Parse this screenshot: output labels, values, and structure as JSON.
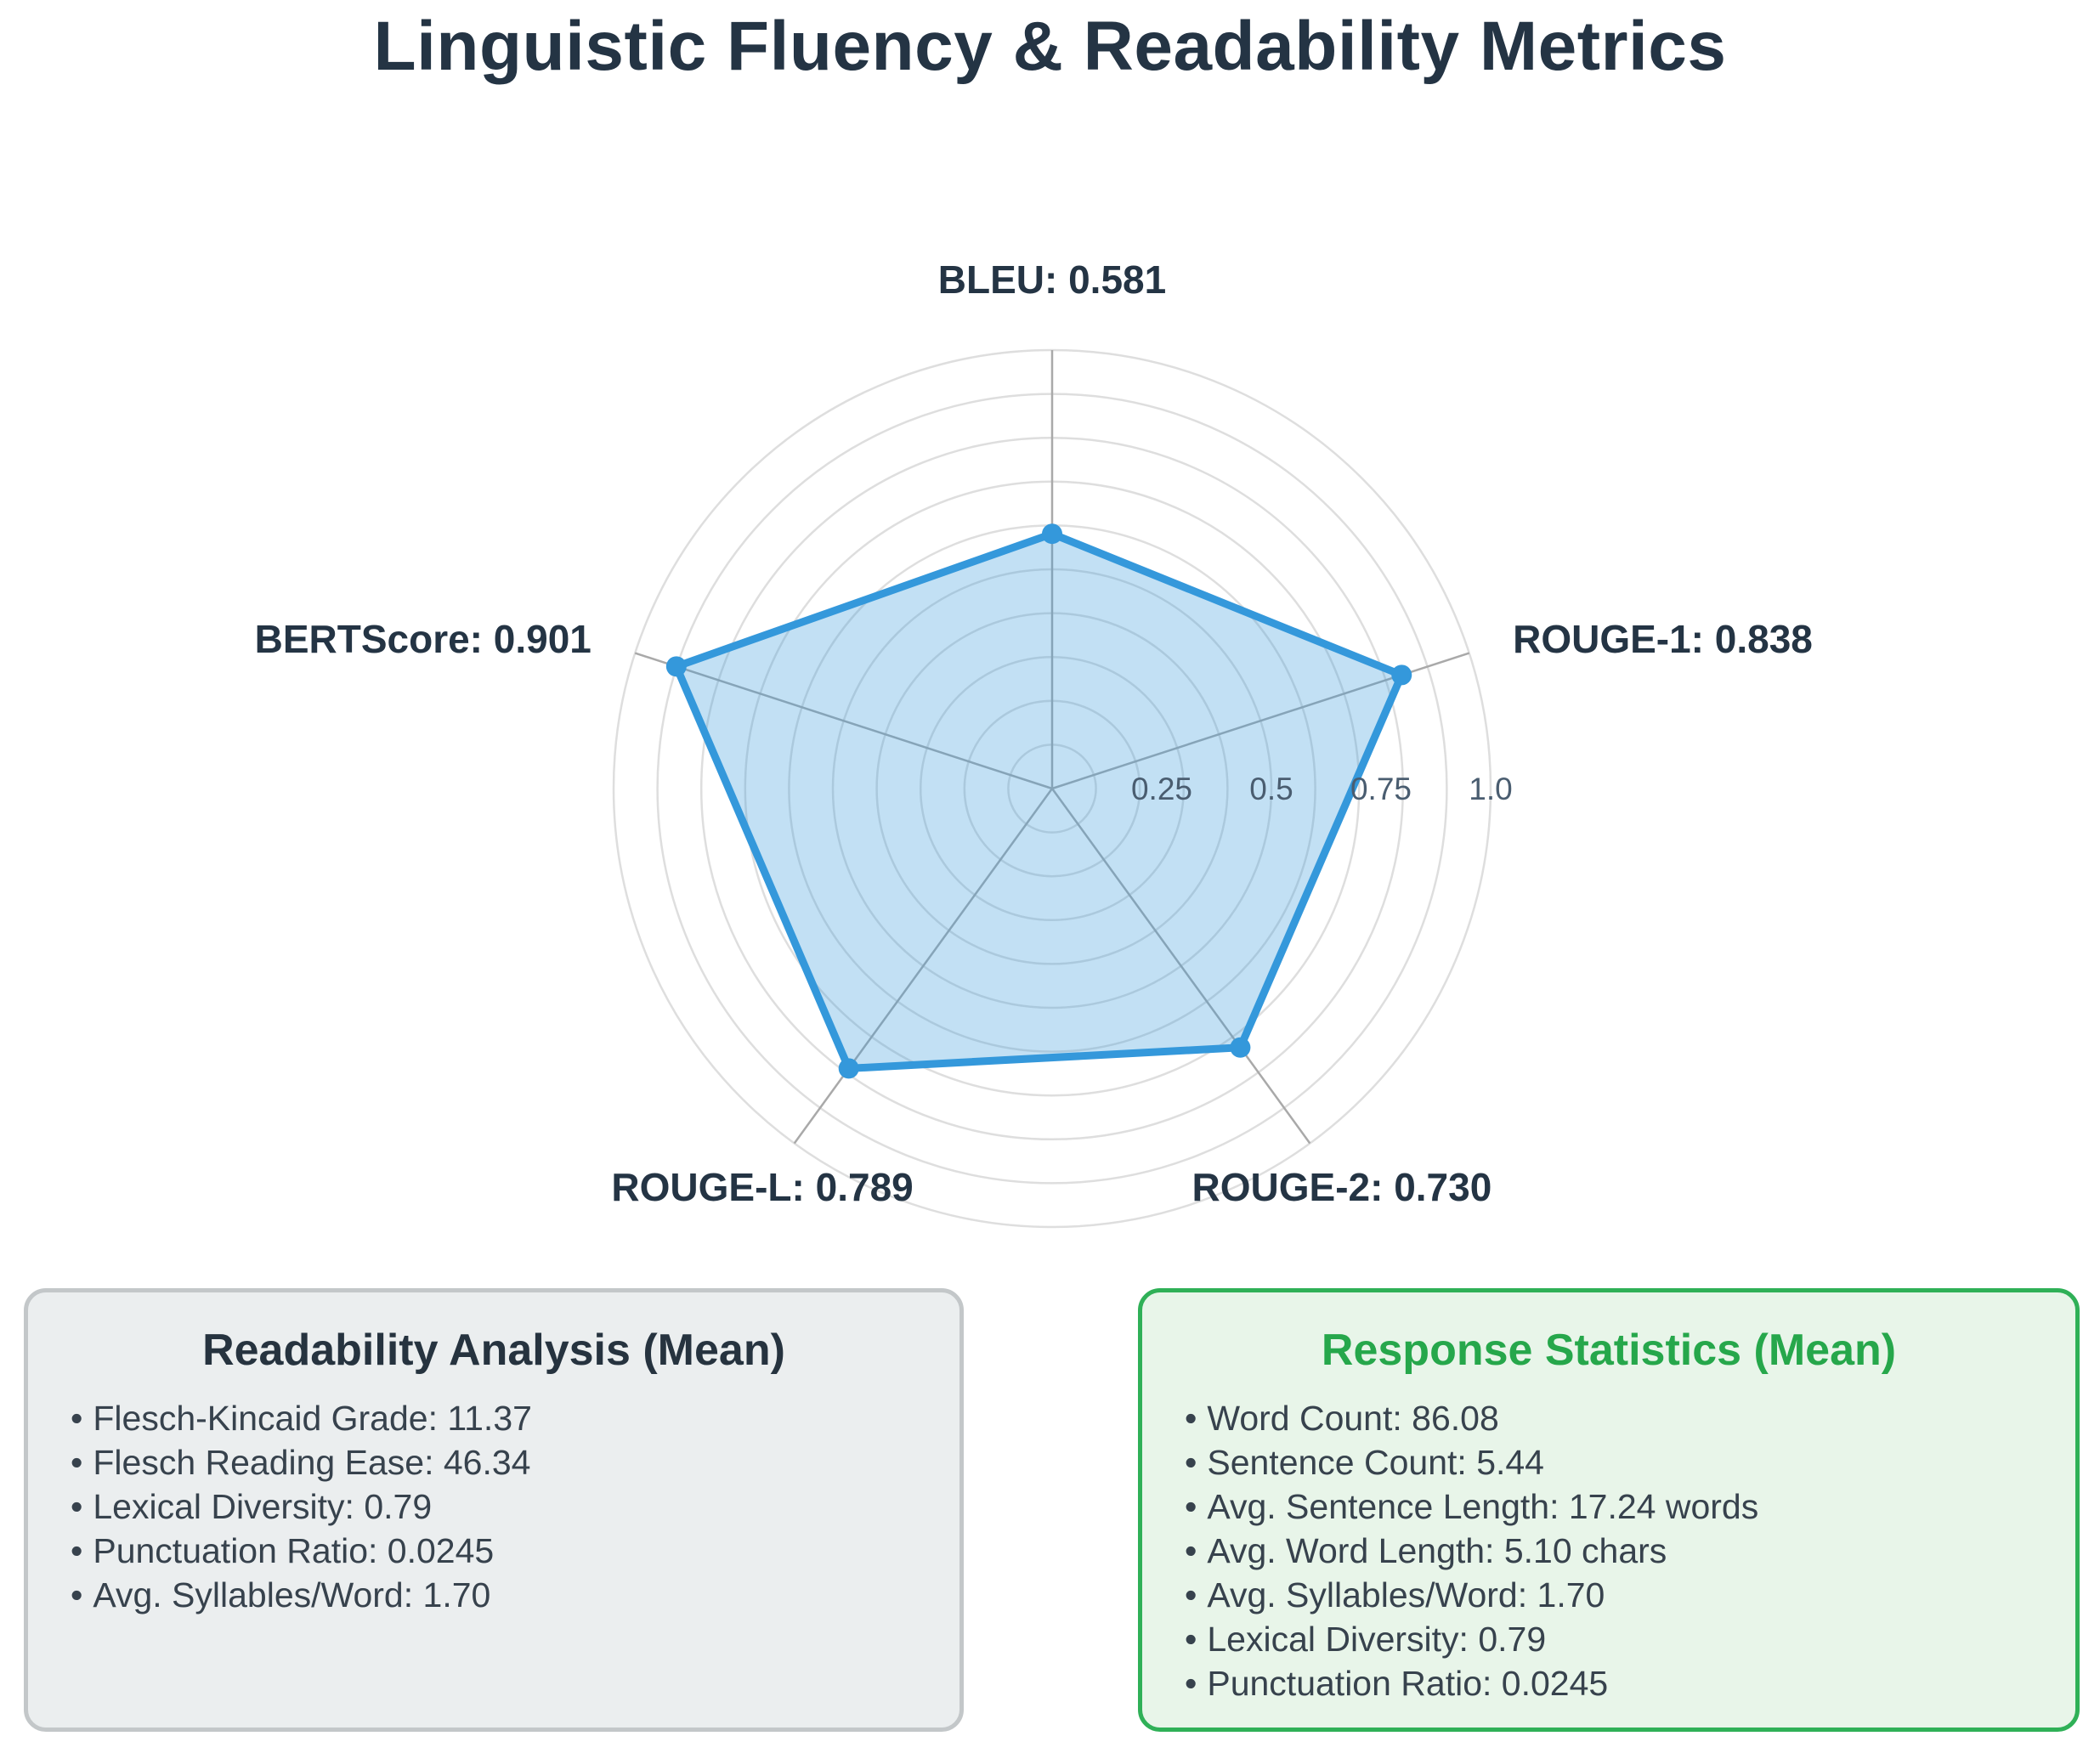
{
  "title": "Linguistic Fluency & Readability Metrics",
  "chart_data": {
    "type": "radar",
    "axes": [
      {
        "name": "BLEU",
        "value": 0.581,
        "label": "BLEU: 0.581"
      },
      {
        "name": "ROUGE-1",
        "value": 0.838,
        "label": "ROUGE-1: 0.838"
      },
      {
        "name": "ROUGE-2",
        "value": 0.73,
        "label": "ROUGE-2: 0.730"
      },
      {
        "name": "ROUGE-L",
        "value": 0.789,
        "label": "ROUGE-L: 0.789"
      },
      {
        "name": "BERTScore",
        "value": 0.901,
        "label": "BERTScore: 0.901"
      }
    ],
    "radial_ticks": [
      "0.25",
      "0.5",
      "0.75",
      "1.0"
    ],
    "rlim": [
      0,
      1.0
    ],
    "grid": true,
    "color": "#3498db"
  },
  "readability": {
    "title": "Readability Analysis (Mean)",
    "items": [
      "Flesch-Kincaid Grade: 11.37",
      "Flesch Reading Ease: 46.34",
      "Lexical Diversity: 0.79",
      "Punctuation Ratio: 0.0245",
      "Avg. Syllables/Word: 1.70"
    ]
  },
  "response": {
    "title": "Response Statistics (Mean)",
    "items": [
      "Word Count: 86.08",
      "Sentence Count: 5.44",
      "Avg. Sentence Length: 17.24 words",
      "Avg. Word Length: 5.10 chars",
      "Avg. Syllables/Word: 1.70",
      "Lexical Diversity: 0.79",
      "Punctuation Ratio: 0.0245"
    ]
  },
  "colors": {
    "title": "#243444",
    "readability_border": "#c3c7c9",
    "readability_bg": "#ebeeef",
    "response_border": "#2fb057",
    "response_bg": "#e8f5e9",
    "response_title": "#26a74b"
  }
}
